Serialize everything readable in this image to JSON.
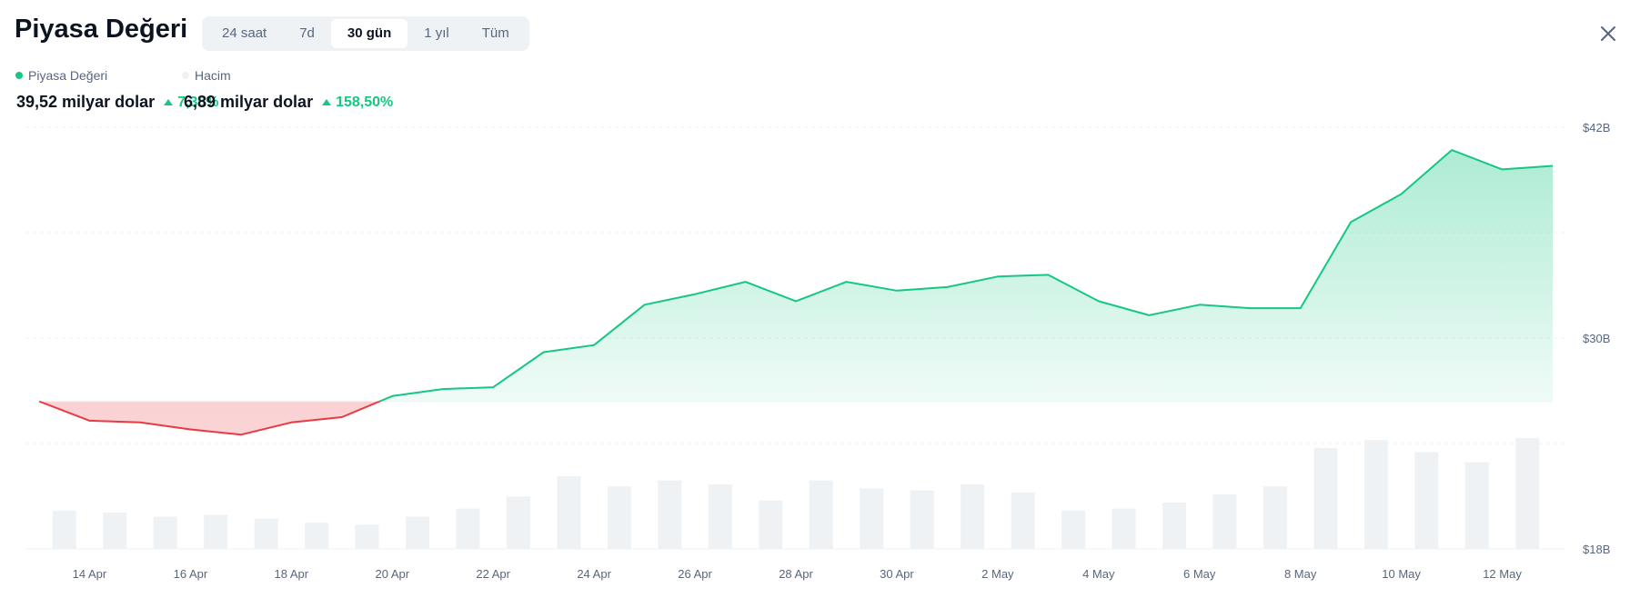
{
  "header": {
    "title": "Piyasa Değeri",
    "tabs": [
      {
        "label": "24 saat",
        "active": false
      },
      {
        "label": "7d",
        "active": false
      },
      {
        "label": "30 gün",
        "active": true
      },
      {
        "label": "1 yıl",
        "active": false
      },
      {
        "label": "Tüm",
        "active": false
      }
    ],
    "close_icon": "close-icon"
  },
  "legend": {
    "market_cap": {
      "label": "Piyasa Değeri",
      "value": "39,52 milyar dolar",
      "change": "7,35%",
      "color": "#16c784"
    },
    "volume": {
      "label": "Hacim",
      "value": "6,89 milyar dolar",
      "change": "158,50%",
      "color": "#eff2f5"
    }
  },
  "chart_data": {
    "type": "area",
    "x": [
      "13 Apr",
      "14 Apr",
      "15 Apr",
      "16 Apr",
      "17 Apr",
      "18 Apr",
      "19 Apr",
      "20 Apr",
      "21 Apr",
      "22 Apr",
      "23 Apr",
      "24 Apr",
      "25 Apr",
      "26 Apr",
      "27 Apr",
      "28 Apr",
      "29 Apr",
      "30 Apr",
      "1 May",
      "2 May",
      "3 May",
      "4 May",
      "5 May",
      "6 May",
      "7 May",
      "8 May",
      "9 May",
      "10 May",
      "11 May",
      "12 May",
      "13 May"
    ],
    "x_tick_labels": [
      "14 Apr",
      "16 Apr",
      "18 Apr",
      "20 Apr",
      "22 Apr",
      "24 Apr",
      "26 Apr",
      "28 Apr",
      "30 Apr",
      "2 May",
      "4 May",
      "6 May",
      "8 May",
      "10 May",
      "12 May"
    ],
    "series": [
      {
        "name": "Piyasa Değeri",
        "values": [
          26.4,
          25.3,
          25.2,
          24.8,
          24.5,
          25.2,
          25.5,
          26.7,
          27.1,
          27.2,
          29.2,
          29.6,
          31.9,
          32.5,
          33.2,
          32.1,
          33.2,
          32.7,
          32.9,
          33.5,
          33.6,
          32.1,
          31.3,
          31.9,
          31.7,
          31.7,
          36.6,
          38.2,
          40.7,
          39.6,
          39.8
        ],
        "color_up": "#16c784",
        "color_down": "#ea3943",
        "baseline": 26.4
      },
      {
        "name": "Hacim",
        "values": [
          2.2,
          1.9,
          1.8,
          1.6,
          1.7,
          1.5,
          1.3,
          1.2,
          1.6,
          2.0,
          2.6,
          3.6,
          3.1,
          3.4,
          3.2,
          2.4,
          3.4,
          3.0,
          2.9,
          3.2,
          2.8,
          1.9,
          2.0,
          2.3,
          2.7,
          3.1,
          5.0,
          5.4,
          4.8,
          4.3,
          5.5
        ],
        "color": "#eff2f5"
      }
    ],
    "y_tick_labels": [
      "$42B",
      "$30B",
      "$18B"
    ],
    "y_ticks": [
      42,
      30,
      18
    ],
    "ylim": [
      18,
      42
    ],
    "grid": true,
    "title": "",
    "xlabel": "",
    "ylabel": ""
  }
}
